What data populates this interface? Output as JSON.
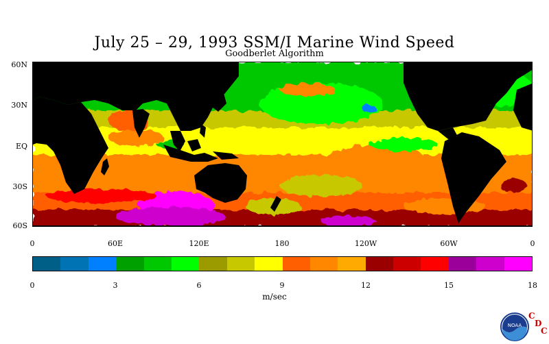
{
  "title": "July 25 – 29, 1993 SSM/I Marine Wind Speed",
  "subtitle": "Goodberlet Algorithm",
  "lat_labels": [
    "60N",
    "30N",
    "EQ",
    "30S",
    "60S"
  ],
  "lon_labels": [
    "0",
    "60E",
    "120E",
    "180",
    "120W",
    "60W",
    "0"
  ],
  "colorbar": {
    "colors": [
      "#005f87",
      "#0073b5",
      "#0080ff",
      "#00a000",
      "#00c800",
      "#00ff00",
      "#9b9b00",
      "#c8c800",
      "#ffff00",
      "#ff5f00",
      "#ff8700",
      "#ffaa00",
      "#9b0000",
      "#cd0000",
      "#ff0000",
      "#9b009b",
      "#cd00cd",
      "#ff00ff"
    ],
    "tick_labels": [
      "0",
      "3",
      "6",
      "9",
      "12",
      "15",
      "18"
    ],
    "units": "m/sec"
  },
  "logo": {
    "agency": "NOAA",
    "cdc": [
      "C",
      "D",
      "C"
    ]
  }
}
